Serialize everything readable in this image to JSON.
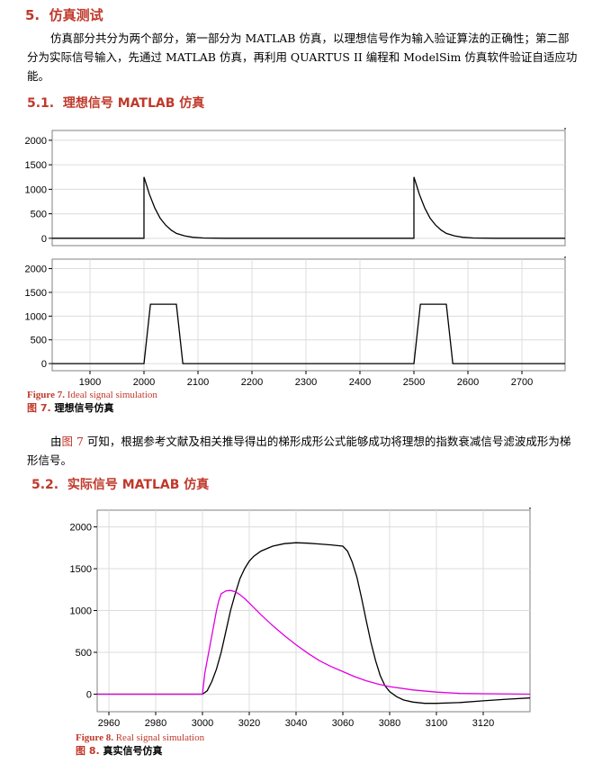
{
  "section5": {
    "num": "5.",
    "title": "仿真测试"
  },
  "para1": "仿真部分共分为两个部分，第一部分为 MATLAB 仿真，以理想信号作为输入验证算法的正确性；第二部分为实际信号输入，先通过 MATLAB 仿真，再利用 QUARTUS II 编程和 ModelSim 仿真软件验证自适应功能。",
  "section51": {
    "num": "5.1.",
    "title": "理想信号 MATLAB 仿真"
  },
  "fig7": {
    "caption_en_label": "Figure 7.",
    "caption_en": " Ideal signal simulation",
    "caption_zh_label": "图 7.",
    "caption_zh": "  理想信号仿真"
  },
  "para2_pre": "由",
  "para2_ref": "图 7",
  "para2_post": " 可知，根据参考文献及相关推导得出的梯形成形公式能够成功将理想的指数衰减信号滤波成形为梯形信号。",
  "section52": {
    "num": "5.2.",
    "title": "实际信号 MATLAB 仿真"
  },
  "fig8": {
    "caption_en_label": "Figure 8.",
    "caption_en": " Real signal simulation",
    "caption_zh_label": "图 8.",
    "caption_zh": "  真实信号仿真"
  },
  "chart_data": [
    {
      "type": "line",
      "title": "",
      "xlabel": "",
      "ylabel": "",
      "xlim": [
        1830,
        2780
      ],
      "ylim": [
        -150,
        2200
      ],
      "yticks": [
        0,
        500,
        1000,
        1500,
        2000
      ],
      "xticks": [],
      "grid": true,
      "series": [
        {
          "color": "#000000",
          "points": [
            [
              1830,
              0
            ],
            [
              2000,
              0
            ],
            [
              2000,
              1250
            ],
            [
              2010,
              900
            ],
            [
              2020,
              620
            ],
            [
              2030,
              410
            ],
            [
              2040,
              270
            ],
            [
              2050,
              170
            ],
            [
              2060,
              100
            ],
            [
              2075,
              50
            ],
            [
              2090,
              20
            ],
            [
              2110,
              6
            ],
            [
              2150,
              0
            ],
            [
              2500,
              0
            ],
            [
              2500,
              1250
            ],
            [
              2510,
              900
            ],
            [
              2520,
              620
            ],
            [
              2530,
              410
            ],
            [
              2540,
              270
            ],
            [
              2550,
              170
            ],
            [
              2560,
              100
            ],
            [
              2575,
              50
            ],
            [
              2590,
              20
            ],
            [
              2610,
              6
            ],
            [
              2650,
              0
            ],
            [
              2780,
              0
            ]
          ]
        }
      ]
    },
    {
      "type": "line",
      "title": "",
      "xlabel": "",
      "ylabel": "",
      "xlim": [
        1830,
        2780
      ],
      "ylim": [
        -150,
        2200
      ],
      "yticks": [
        0,
        500,
        1000,
        1500,
        2000
      ],
      "xticks": [
        1900,
        2000,
        2100,
        2200,
        2300,
        2400,
        2500,
        2600,
        2700
      ],
      "grid": true,
      "series": [
        {
          "color": "#000000",
          "points": [
            [
              1830,
              0
            ],
            [
              2000,
              0
            ],
            [
              2012,
              1250
            ],
            [
              2060,
              1250
            ],
            [
              2072,
              0
            ],
            [
              2500,
              0
            ],
            [
              2512,
              1250
            ],
            [
              2560,
              1250
            ],
            [
              2572,
              0
            ],
            [
              2780,
              0
            ]
          ]
        }
      ]
    },
    {
      "type": "line",
      "title": "",
      "xlabel": "",
      "ylabel": "",
      "xlim": [
        2955,
        3140
      ],
      "ylim": [
        -210,
        2200
      ],
      "yticks": [
        0,
        500,
        1000,
        1500,
        2000
      ],
      "xticks": [
        2960,
        2980,
        3000,
        3020,
        3040,
        3060,
        3080,
        3100,
        3120
      ],
      "grid": true,
      "series": [
        {
          "color": "#000000",
          "points": [
            [
              2955,
              0
            ],
            [
              3000,
              0
            ],
            [
              3002,
              40
            ],
            [
              3004,
              150
            ],
            [
              3006,
              300
            ],
            [
              3008,
              500
            ],
            [
              3010,
              750
            ],
            [
              3012,
              1000
            ],
            [
              3014,
              1200
            ],
            [
              3016,
              1380
            ],
            [
              3018,
              1500
            ],
            [
              3020,
              1590
            ],
            [
              3022,
              1650
            ],
            [
              3025,
              1710
            ],
            [
              3030,
              1770
            ],
            [
              3035,
              1800
            ],
            [
              3040,
              1810
            ],
            [
              3045,
              1805
            ],
            [
              3050,
              1795
            ],
            [
              3055,
              1785
            ],
            [
              3060,
              1770
            ],
            [
              3062,
              1710
            ],
            [
              3064,
              1580
            ],
            [
              3066,
              1400
            ],
            [
              3068,
              1150
            ],
            [
              3070,
              880
            ],
            [
              3072,
              620
            ],
            [
              3074,
              400
            ],
            [
              3076,
              220
            ],
            [
              3078,
              100
            ],
            [
              3080,
              30
            ],
            [
              3083,
              -30
            ],
            [
              3086,
              -70
            ],
            [
              3090,
              -95
            ],
            [
              3095,
              -110
            ],
            [
              3100,
              -110
            ],
            [
              3110,
              -100
            ],
            [
              3120,
              -80
            ],
            [
              3130,
              -60
            ],
            [
              3140,
              -45
            ]
          ]
        },
        {
          "color": "#e000e0",
          "points": [
            [
              2955,
              0
            ],
            [
              3000,
              0
            ],
            [
              3001,
              250
            ],
            [
              3002,
              400
            ],
            [
              3003,
              550
            ],
            [
              3004,
              700
            ],
            [
              3005,
              850
            ],
            [
              3006,
              1000
            ],
            [
              3007,
              1120
            ],
            [
              3008,
              1200
            ],
            [
              3010,
              1235
            ],
            [
              3012,
              1240
            ],
            [
              3014,
              1225
            ],
            [
              3016,
              1190
            ],
            [
              3018,
              1145
            ],
            [
              3020,
              1090
            ],
            [
              3025,
              950
            ],
            [
              3030,
              820
            ],
            [
              3035,
              700
            ],
            [
              3040,
              590
            ],
            [
              3045,
              490
            ],
            [
              3050,
              400
            ],
            [
              3055,
              330
            ],
            [
              3060,
              270
            ],
            [
              3065,
              210
            ],
            [
              3070,
              160
            ],
            [
              3075,
              120
            ],
            [
              3080,
              90
            ],
            [
              3090,
              50
            ],
            [
              3100,
              25
            ],
            [
              3110,
              10
            ],
            [
              3120,
              5
            ],
            [
              3140,
              0
            ]
          ]
        }
      ]
    }
  ]
}
